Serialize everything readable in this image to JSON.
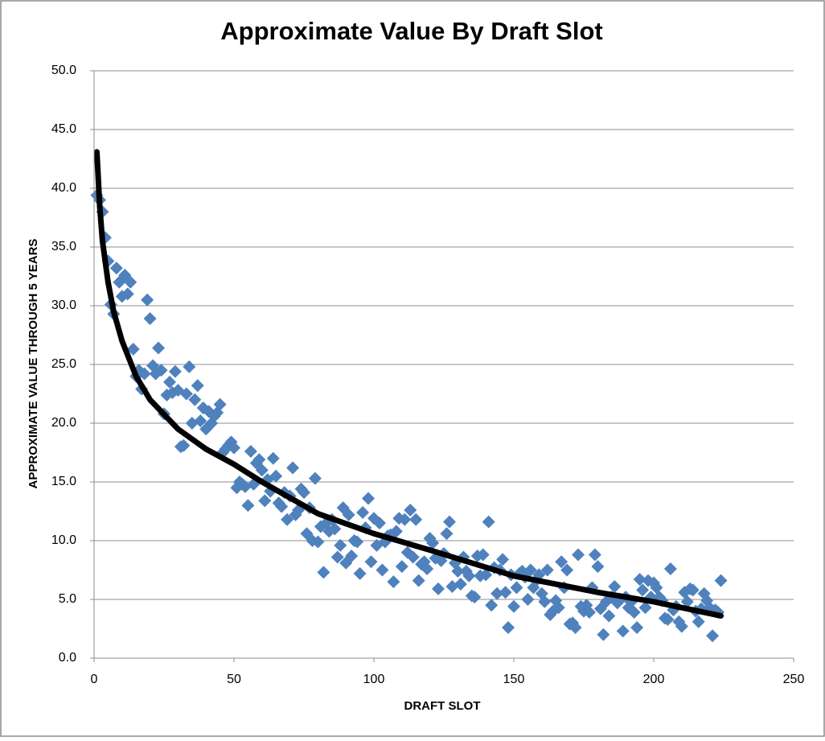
{
  "chart_data": {
    "type": "scatter",
    "title": "Approximate Value By Draft Slot",
    "x_label": "DRAFT SLOT",
    "y_label": "APPROXIMATE VALUE THROUGH 5 YEARS",
    "xlim": [
      0,
      250
    ],
    "xticks": [
      0,
      50,
      100,
      150,
      200,
      250
    ],
    "ylim": [
      0,
      50
    ],
    "yticks": [
      {
        "value": 0,
        "label": "0.0"
      },
      {
        "value": 5,
        "label": "5.0"
      },
      {
        "value": 10,
        "label": "10.0"
      },
      {
        "value": 15,
        "label": "15.0"
      },
      {
        "value": 20,
        "label": "20.0"
      },
      {
        "value": 25,
        "label": "25.0"
      },
      {
        "value": 30,
        "label": "30.0"
      },
      {
        "value": 35,
        "label": "35.0"
      },
      {
        "value": 40,
        "label": "40.0"
      },
      {
        "value": 45,
        "label": "45.0"
      },
      {
        "value": 50,
        "label": "50.0"
      }
    ],
    "grid": true,
    "color": "#4f81bd",
    "x": [
      1,
      2,
      3,
      4,
      5,
      6,
      7,
      8,
      9,
      10,
      11,
      12,
      13,
      14,
      15,
      16,
      17,
      18,
      19,
      20,
      21,
      22,
      23,
      24,
      25,
      26,
      27,
      28,
      29,
      30,
      31,
      32,
      33,
      34,
      35,
      36,
      37,
      38,
      39,
      40,
      41,
      42,
      43,
      44,
      45,
      46,
      47,
      48,
      49,
      50,
      51,
      52,
      53,
      54,
      55,
      56,
      57,
      58,
      59,
      60,
      61,
      62,
      63,
      64,
      65,
      66,
      67,
      68,
      69,
      70,
      71,
      72,
      73,
      74,
      75,
      76,
      77,
      78,
      79,
      80,
      81,
      82,
      83,
      84,
      85,
      86,
      87,
      88,
      89,
      90,
      91,
      92,
      93,
      94,
      95,
      96,
      97,
      98,
      99,
      100,
      101,
      102,
      103,
      104,
      105,
      106,
      107,
      108,
      109,
      110,
      111,
      112,
      113,
      114,
      115,
      116,
      117,
      118,
      119,
      120,
      121,
      122,
      123,
      124,
      125,
      126,
      127,
      128,
      129,
      130,
      131,
      132,
      133,
      134,
      135,
      136,
      137,
      138,
      139,
      140,
      141,
      142,
      143,
      144,
      145,
      146,
      147,
      148,
      149,
      150,
      151,
      152,
      153,
      154,
      155,
      156,
      157,
      158,
      159,
      160,
      161,
      162,
      163,
      164,
      165,
      166,
      167,
      168,
      169,
      170,
      171,
      172,
      173,
      174,
      175,
      176,
      177,
      178,
      179,
      180,
      181,
      182,
      183,
      184,
      185,
      186,
      187,
      188,
      189,
      190,
      191,
      192,
      193,
      194,
      195,
      196,
      197,
      198,
      199,
      200,
      201,
      202,
      203,
      204,
      205,
      206,
      207,
      208,
      209,
      210,
      211,
      212,
      213,
      214,
      215,
      216,
      217,
      218,
      219,
      220,
      221,
      222,
      223,
      224
    ],
    "values": [
      39.4,
      39.0,
      38.0,
      35.8,
      33.8,
      30.1,
      29.3,
      33.2,
      32.0,
      30.8,
      32.6,
      31.0,
      32.0,
      26.3,
      24.0,
      24.5,
      22.9,
      24.2,
      30.5,
      28.9,
      24.9,
      24.2,
      26.4,
      24.5,
      20.8,
      22.4,
      23.5,
      22.6,
      24.4,
      22.8,
      18.0,
      18.1,
      22.5,
      24.8,
      20.0,
      22.0,
      23.2,
      20.2,
      21.3,
      19.5,
      21.0,
      20.0,
      20.6,
      20.9,
      21.6,
      17.5,
      17.8,
      18.1,
      18.4,
      17.9,
      14.5,
      15.0,
      14.8,
      14.6,
      13.0,
      17.6,
      14.8,
      16.6,
      16.9,
      16.0,
      13.4,
      15.2,
      14.2,
      17.0,
      15.5,
      13.2,
      12.9,
      14.1,
      11.8,
      13.8,
      16.2,
      12.2,
      12.6,
      14.4,
      14.1,
      10.6,
      12.8,
      10.0,
      15.3,
      9.9,
      11.2,
      7.3,
      11.5,
      10.8,
      11.8,
      11.0,
      8.6,
      9.6,
      12.8,
      8.1,
      12.2,
      8.7,
      10.0,
      9.9,
      7.2,
      12.4,
      11.1,
      13.6,
      8.2,
      11.9,
      9.6,
      11.5,
      7.5,
      9.9,
      10.4,
      10.5,
      6.5,
      10.8,
      11.9,
      7.8,
      11.8,
      9.0,
      12.6,
      8.6,
      11.8,
      6.6,
      8.0,
      8.2,
      7.6,
      10.2,
      9.8,
      8.5,
      5.9,
      8.3,
      8.9,
      10.6,
      11.6,
      6.1,
      8.1,
      7.4,
      6.3,
      8.6,
      7.4,
      7.0,
      5.3,
      5.2,
      8.7,
      7.0,
      8.8,
      7.1,
      11.6,
      4.5,
      7.7,
      5.5,
      7.5,
      8.4,
      5.6,
      2.6,
      7.1,
      4.4,
      6.0,
      7.2,
      7.4,
      6.9,
      5.0,
      7.5,
      6.0,
      6.6,
      7.1,
      5.5,
      4.8,
      7.5,
      3.7,
      4.0,
      4.9,
      4.3,
      8.2,
      6.0,
      7.5,
      2.9,
      3.0,
      2.6,
      8.8,
      4.4,
      4.0,
      4.5,
      3.9,
      6.0,
      8.8,
      7.8,
      4.2,
      2.0,
      4.8,
      3.6,
      5.2,
      6.1,
      4.7,
      5.0,
      2.3,
      5.2,
      4.3,
      4.8,
      3.9,
      2.6,
      6.7,
      5.8,
      4.3,
      6.6,
      5.2,
      6.4,
      6.0,
      5.2,
      4.9,
      3.4,
      3.3,
      7.6,
      4.1,
      4.4,
      3.1,
      2.7,
      5.6,
      4.8,
      5.9,
      5.8,
      4.0,
      3.1,
      4.2,
      5.5,
      4.9,
      4.3,
      1.9,
      4.1,
      3.9,
      6.6
    ],
    "trendline": {
      "color": "#000000",
      "x": [
        1,
        2,
        3,
        5,
        7,
        10,
        15,
        20,
        30,
        40,
        50,
        60,
        80,
        100,
        120,
        150,
        180,
        200,
        224
      ],
      "values": [
        43.1,
        38.5,
        35.5,
        32.0,
        29.5,
        27.0,
        24.0,
        22.0,
        19.5,
        17.8,
        16.5,
        15.0,
        12.3,
        10.6,
        9.2,
        7.0,
        5.6,
        4.8,
        3.6
      ]
    }
  }
}
